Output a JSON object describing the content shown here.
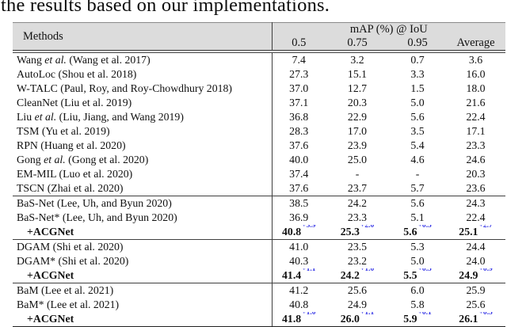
{
  "caption": "the results based on our implementations.",
  "colors": {
    "delta_blue": "#3535e6",
    "header_bg": "#dcdcdc",
    "rule": "#3f3f3f"
  },
  "table": {
    "header": {
      "methods_label": "Methods",
      "group_label": "mAP (%) @ IoU",
      "iou_columns": [
        "0.5",
        "0.75",
        "0.95"
      ],
      "average_label": "Average"
    },
    "sections": [
      {
        "rows": [
          {
            "method": [
              {
                "t": "Wang "
              },
              {
                "t": "et al.",
                "i": true
              },
              {
                "t": " (Wang et al. 2017)"
              }
            ],
            "values": [
              {
                "v": "7.4"
              },
              {
                "v": "3.2"
              },
              {
                "v": "0.7"
              },
              {
                "v": "3.6"
              }
            ]
          },
          {
            "method": [
              {
                "t": "AutoLoc (Shou et al. 2018)"
              }
            ],
            "values": [
              {
                "v": "27.3"
              },
              {
                "v": "15.1"
              },
              {
                "v": "3.3"
              },
              {
                "v": "16.0"
              }
            ]
          },
          {
            "method": [
              {
                "t": "W-TALC (Paul, Roy, and Roy-Chowdhury 2018)"
              }
            ],
            "values": [
              {
                "v": "37.0"
              },
              {
                "v": "12.7"
              },
              {
                "v": "1.5"
              },
              {
                "v": "18.0"
              }
            ]
          },
          {
            "method": [
              {
                "t": "CleanNet (Liu et al. 2019)"
              }
            ],
            "values": [
              {
                "v": "37.1"
              },
              {
                "v": "20.3"
              },
              {
                "v": "5.0"
              },
              {
                "v": "21.6"
              }
            ]
          },
          {
            "method": [
              {
                "t": "Liu "
              },
              {
                "t": "et al.",
                "i": true
              },
              {
                "t": " (Liu, Jiang, and Wang 2019)"
              }
            ],
            "values": [
              {
                "v": "36.8"
              },
              {
                "v": "22.9"
              },
              {
                "v": "5.6"
              },
              {
                "v": "22.4"
              }
            ]
          },
          {
            "method": [
              {
                "t": "TSM (Yu et al. 2019)"
              }
            ],
            "values": [
              {
                "v": "28.3"
              },
              {
                "v": "17.0"
              },
              {
                "v": "3.5"
              },
              {
                "v": "17.1"
              }
            ]
          },
          {
            "method": [
              {
                "t": "RPN (Huang et al. 2020)"
              }
            ],
            "values": [
              {
                "v": "37.6"
              },
              {
                "v": "23.9"
              },
              {
                "v": "5.4"
              },
              {
                "v": "23.3"
              }
            ]
          },
          {
            "method": [
              {
                "t": "Gong "
              },
              {
                "t": "et al.",
                "i": true
              },
              {
                "t": " (Gong et al. 2020)"
              }
            ],
            "values": [
              {
                "v": "40.0"
              },
              {
                "v": "25.0"
              },
              {
                "v": "4.6"
              },
              {
                "v": "24.6"
              }
            ]
          },
          {
            "method": [
              {
                "t": "EM-MIL (Luo et al. 2020)"
              }
            ],
            "values": [
              {
                "v": "37.4"
              },
              {
                "v": "-"
              },
              {
                "v": "-"
              },
              {
                "v": "20.3"
              }
            ]
          },
          {
            "method": [
              {
                "t": "TSCN (Zhai et al. 2020)"
              }
            ],
            "values": [
              {
                "v": "37.6"
              },
              {
                "v": "23.7"
              },
              {
                "v": "5.7"
              },
              {
                "v": "23.6"
              }
            ]
          }
        ]
      },
      {
        "rows": [
          {
            "method": [
              {
                "t": "BaS-Net (Lee, Uh, and Byun 2020)"
              }
            ],
            "values": [
              {
                "v": "38.5"
              },
              {
                "v": "24.2"
              },
              {
                "v": "5.6"
              },
              {
                "v": "24.3"
              }
            ]
          },
          {
            "method": [
              {
                "t": "BaS-Net* (Lee, Uh, and Byun 2020)"
              }
            ],
            "values": [
              {
                "v": "36.9"
              },
              {
                "v": "23.3"
              },
              {
                "v": "5.1"
              },
              {
                "v": "22.4"
              }
            ]
          },
          {
            "method": [
              {
                "t": "+ACGNet"
              }
            ],
            "bold": true,
            "indent": true,
            "values": [
              {
                "v": "40.8",
                "d": "+3.9"
              },
              {
                "v": "25.3",
                "d": "+2.0"
              },
              {
                "v": "5.6",
                "d": "+0.5"
              },
              {
                "v": "25.1",
                "d": "+2.7"
              }
            ]
          }
        ]
      },
      {
        "rows": [
          {
            "method": [
              {
                "t": "DGAM (Shi et al. 2020)"
              }
            ],
            "values": [
              {
                "v": "41.0"
              },
              {
                "v": "23.5"
              },
              {
                "v": "5.3"
              },
              {
                "v": "24.4"
              }
            ]
          },
          {
            "method": [
              {
                "t": "DGAM* (Shi et al. 2020)"
              }
            ],
            "values": [
              {
                "v": "40.3"
              },
              {
                "v": "23.2"
              },
              {
                "v": "5.0"
              },
              {
                "v": "24.0"
              }
            ]
          },
          {
            "method": [
              {
                "t": "+ACGNet"
              }
            ],
            "bold": true,
            "indent": true,
            "values": [
              {
                "v": "41.4",
                "d": "+1.1"
              },
              {
                "v": "24.2",
                "d": "+1.0"
              },
              {
                "v": "5.5",
                "d": "+0.5"
              },
              {
                "v": "24.9",
                "d": "+0.9"
              }
            ]
          }
        ]
      },
      {
        "rows": [
          {
            "method": [
              {
                "t": "BaM (Lee et al. 2021)"
              }
            ],
            "values": [
              {
                "v": "41.2"
              },
              {
                "v": "25.6"
              },
              {
                "v": "6.0"
              },
              {
                "v": "25.9"
              }
            ]
          },
          {
            "method": [
              {
                "t": "BaM* (Lee et al. 2021)"
              }
            ],
            "values": [
              {
                "v": "40.8"
              },
              {
                "v": "24.9"
              },
              {
                "v": "5.8"
              },
              {
                "v": "25.6"
              }
            ]
          },
          {
            "method": [
              {
                "t": "+ACGNet"
              }
            ],
            "bold": true,
            "indent": true,
            "values": [
              {
                "v": "41.8",
                "d": "+1.0"
              },
              {
                "v": "26.0",
                "d": "+1.1"
              },
              {
                "v": "5.9",
                "d": "+0.1"
              },
              {
                "v": "26.1",
                "d": "+0.5"
              }
            ]
          }
        ]
      }
    ]
  }
}
